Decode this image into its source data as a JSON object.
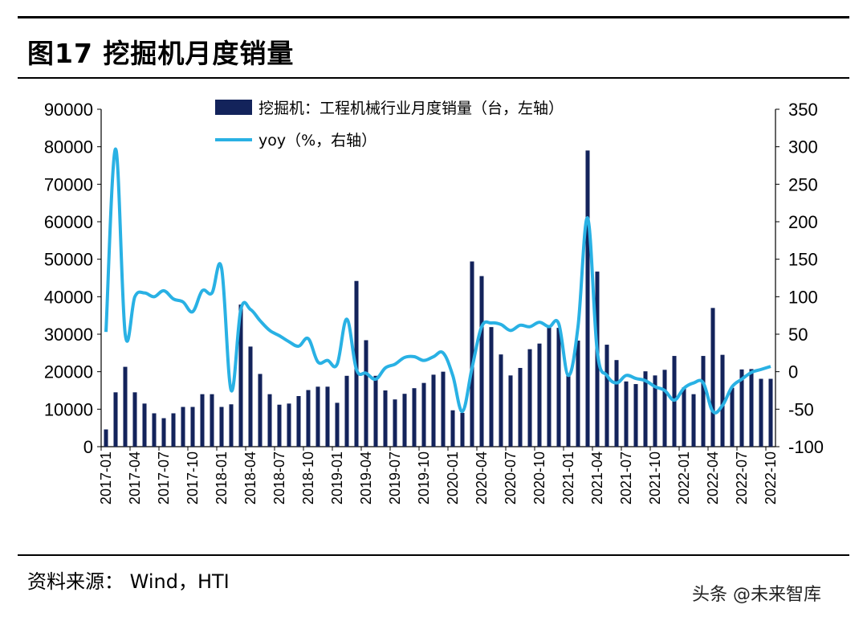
{
  "header": {
    "title": "图17 挖掘机月度销量"
  },
  "footer": {
    "source": "资料来源： Wind，HTI",
    "watermark": "头条 @未来智库"
  },
  "chart_data": {
    "type": "bar+line",
    "title": "图17 挖掘机月度销量",
    "legend": {
      "placement": "top-center",
      "entries": [
        "挖掘机：工程机械行业月度销量（台，左轴）",
        "yoy（%，右轴）"
      ]
    },
    "x_tick_labels": [
      "2017-01",
      "2017-04",
      "2017-07",
      "2017-10",
      "2018-01",
      "2018-04",
      "2018-07",
      "2018-10",
      "2019-01",
      "2019-04",
      "2019-07",
      "2019-10",
      "2020-01",
      "2020-04",
      "2020-07",
      "2020-10",
      "2021-01",
      "2021-04",
      "2021-07",
      "2021-10",
      "2022-01",
      "2022-04",
      "2022-07",
      "2022-10"
    ],
    "y_left": {
      "ticks": [
        "0",
        "10000",
        "20000",
        "30000",
        "40000",
        "50000",
        "60000",
        "70000",
        "80000",
        "90000"
      ],
      "ylim": [
        0,
        90000
      ]
    },
    "y_right": {
      "ticks": [
        "-100",
        "-50",
        "0",
        "50",
        "100",
        "150",
        "200",
        "250",
        "300",
        "350"
      ],
      "ylim": [
        -100,
        350
      ]
    },
    "x": [
      "2017-01",
      "2017-02",
      "2017-03",
      "2017-04",
      "2017-05",
      "2017-06",
      "2017-07",
      "2017-08",
      "2017-09",
      "2017-10",
      "2017-11",
      "2017-12",
      "2018-01",
      "2018-02",
      "2018-03",
      "2018-04",
      "2018-05",
      "2018-06",
      "2018-07",
      "2018-08",
      "2018-09",
      "2018-10",
      "2018-11",
      "2018-12",
      "2019-01",
      "2019-02",
      "2019-03",
      "2019-04",
      "2019-05",
      "2019-06",
      "2019-07",
      "2019-08",
      "2019-09",
      "2019-10",
      "2019-11",
      "2019-12",
      "2020-01",
      "2020-02",
      "2020-03",
      "2020-04",
      "2020-05",
      "2020-06",
      "2020-07",
      "2020-08",
      "2020-09",
      "2020-10",
      "2020-11",
      "2020-12",
      "2021-01",
      "2021-02",
      "2021-03",
      "2021-04",
      "2021-05",
      "2021-06",
      "2021-07",
      "2021-08",
      "2021-09",
      "2021-10",
      "2021-11",
      "2021-12",
      "2022-01",
      "2022-02",
      "2022-03",
      "2022-04",
      "2022-05",
      "2022-06",
      "2022-07",
      "2022-08",
      "2022-09",
      "2022-10"
    ],
    "series": [
      {
        "name": "挖掘机：工程机械行业月度销量（台，左轴）",
        "axis": "left",
        "type": "bar",
        "color": "#13235b",
        "values": [
          4600,
          14500,
          21300,
          14500,
          11500,
          8900,
          7600,
          8900,
          10600,
          10600,
          14000,
          14000,
          10600,
          11300,
          37900,
          26700,
          19400,
          14000,
          11200,
          11500,
          13500,
          15100,
          16000,
          16000,
          11700,
          18900,
          44200,
          28400,
          18900,
          15000,
          12600,
          14100,
          15600,
          17000,
          19200,
          20000,
          9700,
          9000,
          49400,
          45500,
          31900,
          24600,
          19000,
          21000,
          26000,
          27500,
          32400,
          31700,
          19600,
          28300,
          79000,
          46700,
          27200,
          23100,
          17400,
          16700,
          20100,
          19000,
          20500,
          24200,
          15800,
          14000,
          24200,
          37000,
          24500,
          15700,
          20600,
          20700,
          18100,
          18100
        ]
      },
      {
        "name": "yoy（%，右轴）",
        "axis": "right",
        "type": "line",
        "color": "#29b1e4",
        "values": [
          53,
          297,
          50,
          100,
          105,
          100,
          108,
          97,
          93,
          80,
          108,
          105,
          138,
          -25,
          83,
          83,
          68,
          55,
          48,
          40,
          34,
          44,
          13,
          15,
          10,
          70,
          3,
          -2,
          -10,
          5,
          10,
          19,
          20,
          15,
          20,
          25,
          -5,
          -53,
          5,
          60,
          65,
          63,
          55,
          62,
          60,
          66,
          60,
          64,
          -5,
          60,
          205,
          27,
          -5,
          -15,
          -5,
          -9,
          -12,
          -20,
          -25,
          -38,
          -22,
          -15,
          -15,
          -53,
          -45,
          -20,
          -10,
          -1,
          3,
          7
        ]
      }
    ]
  }
}
